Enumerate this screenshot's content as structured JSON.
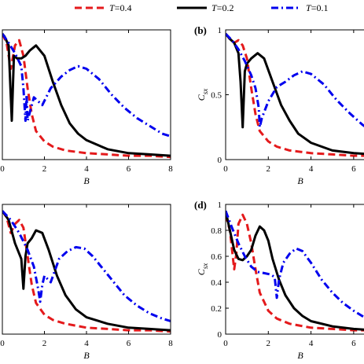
{
  "legend": [
    {
      "label_var": "T",
      "label_val": "=0.4",
      "color": "#e41a1c",
      "dash": "dashed"
    },
    {
      "label_var": "T",
      "label_val": "=0.2",
      "color": "#000000",
      "dash": "solid"
    },
    {
      "label_var": "T",
      "label_val": "=0.1",
      "color": "#0000ee",
      "dash": "dashdot"
    }
  ],
  "chart_data": [
    {
      "type": "line",
      "panel_label": "",
      "xlabel": "B",
      "ylabel": "",
      "xlim": [
        0,
        8
      ],
      "ylim": [
        0,
        1
      ],
      "xticks": [
        "0",
        "2",
        "4",
        "6",
        "8"
      ],
      "yticks": [],
      "series": [
        {
          "name": "T=0.4",
          "x": [
            0,
            0.2,
            0.4,
            0.6,
            0.8,
            1.0,
            1.2,
            1.4,
            1.6,
            2.0,
            2.4,
            3.0,
            4.0,
            5.0,
            6.0,
            7.0,
            8.0
          ],
          "y": [
            0.97,
            0.9,
            0.7,
            0.88,
            0.92,
            0.8,
            0.55,
            0.35,
            0.22,
            0.14,
            0.1,
            0.07,
            0.05,
            0.04,
            0.03,
            0.03,
            0.02
          ]
        },
        {
          "name": "T=0.2",
          "x": [
            0,
            0.1,
            0.3,
            0.45,
            0.55,
            0.7,
            0.9,
            1.1,
            1.3,
            1.6,
            2.0,
            2.4,
            2.8,
            3.2,
            3.6,
            4.0,
            5.0,
            6.0,
            7.0,
            8.0
          ],
          "y": [
            0.97,
            0.95,
            0.88,
            0.3,
            0.8,
            0.78,
            0.78,
            0.8,
            0.84,
            0.88,
            0.8,
            0.6,
            0.42,
            0.28,
            0.2,
            0.15,
            0.08,
            0.05,
            0.04,
            0.03
          ]
        },
        {
          "name": "T=0.1",
          "x": [
            0,
            0.3,
            0.6,
            0.9,
            1.0,
            1.1,
            1.15,
            1.2,
            1.5,
            1.9,
            2.3,
            2.8,
            3.2,
            3.6,
            4.0,
            4.6,
            5.2,
            5.8,
            6.4,
            7.0,
            7.6,
            8.0
          ],
          "y": [
            0.97,
            0.9,
            0.82,
            0.72,
            0.55,
            0.3,
            0.5,
            0.3,
            0.48,
            0.42,
            0.55,
            0.64,
            0.69,
            0.72,
            0.7,
            0.62,
            0.5,
            0.4,
            0.32,
            0.26,
            0.2,
            0.18
          ]
        }
      ]
    },
    {
      "type": "line",
      "panel_label": "(b)",
      "xlabel": "B",
      "ylabel_main": "C",
      "ylabel_sub": "sx",
      "xlim": [
        0,
        7
      ],
      "ylim": [
        0,
        1
      ],
      "xticks": [
        "0",
        "2",
        "4",
        "6"
      ],
      "yticks": [
        "0",
        "0.5",
        "1"
      ],
      "series": [
        {
          "name": "T=0.4",
          "x": [
            0,
            0.2,
            0.4,
            0.6,
            0.8,
            1.0,
            1.2,
            1.4,
            1.6,
            2.0,
            2.4,
            3.0,
            4.0,
            5.0,
            6.0,
            7.0
          ],
          "y": [
            0.97,
            0.93,
            0.9,
            0.92,
            0.88,
            0.78,
            0.55,
            0.35,
            0.22,
            0.14,
            0.1,
            0.07,
            0.05,
            0.04,
            0.03,
            0.03
          ]
        },
        {
          "name": "T=0.2",
          "x": [
            0,
            0.2,
            0.4,
            0.6,
            0.7,
            0.8,
            0.9,
            1.0,
            1.2,
            1.5,
            1.8,
            2.2,
            2.6,
            3.0,
            3.4,
            4.0,
            5.0,
            6.0,
            7.0
          ],
          "y": [
            0.97,
            0.93,
            0.9,
            0.82,
            0.6,
            0.25,
            0.68,
            0.74,
            0.78,
            0.82,
            0.78,
            0.6,
            0.42,
            0.3,
            0.2,
            0.13,
            0.07,
            0.05,
            0.04
          ]
        },
        {
          "name": "T=0.1",
          "x": [
            0,
            0.3,
            0.6,
            0.9,
            1.2,
            1.4,
            1.55,
            1.6,
            1.7,
            2.0,
            2.4,
            2.8,
            3.2,
            3.6,
            4.0,
            4.6,
            5.2,
            5.8,
            6.4,
            7.0
          ],
          "y": [
            0.97,
            0.92,
            0.85,
            0.76,
            0.65,
            0.55,
            0.4,
            0.25,
            0.32,
            0.45,
            0.56,
            0.6,
            0.65,
            0.68,
            0.66,
            0.58,
            0.46,
            0.36,
            0.27,
            0.2
          ]
        }
      ]
    },
    {
      "type": "line",
      "panel_label": "",
      "xlabel": "B",
      "ylabel": "",
      "xlim": [
        0,
        8
      ],
      "ylim": [
        0,
        1
      ],
      "xticks": [
        "0",
        "2",
        "4",
        "6",
        "8"
      ],
      "yticks": [],
      "series": [
        {
          "name": "T=0.4",
          "x": [
            0,
            0.2,
            0.4,
            0.6,
            0.8,
            1.0,
            1.2,
            1.4,
            1.6,
            2.0,
            2.4,
            3.0,
            4.0,
            5.0,
            6.0,
            7.0,
            8.0
          ],
          "y": [
            0.95,
            0.9,
            0.78,
            0.85,
            0.88,
            0.82,
            0.6,
            0.38,
            0.24,
            0.15,
            0.11,
            0.08,
            0.05,
            0.04,
            0.03,
            0.03,
            0.02
          ]
        },
        {
          "name": "T=0.2",
          "x": [
            0,
            0.3,
            0.6,
            0.9,
            1.0,
            1.1,
            1.2,
            1.4,
            1.6,
            1.9,
            2.2,
            2.6,
            3.0,
            3.5,
            4.0,
            5.0,
            6.0,
            7.0,
            8.0
          ],
          "y": [
            0.95,
            0.88,
            0.7,
            0.58,
            0.35,
            0.6,
            0.7,
            0.74,
            0.8,
            0.78,
            0.65,
            0.45,
            0.3,
            0.19,
            0.13,
            0.08,
            0.05,
            0.04,
            0.03
          ]
        },
        {
          "name": "T=0.1",
          "x": [
            0,
            0.4,
            0.8,
            1.2,
            1.5,
            1.7,
            1.8,
            1.9,
            2.0,
            2.3,
            2.7,
            3.1,
            3.5,
            3.9,
            4.3,
            4.8,
            5.3,
            5.8,
            6.4,
            7.0,
            7.6,
            8.0
          ],
          "y": [
            0.95,
            0.88,
            0.78,
            0.65,
            0.52,
            0.35,
            0.25,
            0.38,
            0.45,
            0.4,
            0.58,
            0.64,
            0.67,
            0.66,
            0.6,
            0.5,
            0.4,
            0.3,
            0.22,
            0.16,
            0.12,
            0.1
          ]
        }
      ]
    },
    {
      "type": "line",
      "panel_label": "(d)",
      "xlabel": "B",
      "ylabel_main": "C",
      "ylabel_sub": "sx",
      "xlim": [
        0,
        7
      ],
      "ylim": [
        0,
        1
      ],
      "xticks": [
        "0",
        "2",
        "4",
        "6"
      ],
      "yticks": [
        "0",
        "0.2",
        "0.4",
        "0.6",
        "0.8",
        "1"
      ],
      "series": [
        {
          "name": "T=0.4",
          "x": [
            0,
            0.2,
            0.4,
            0.5,
            0.6,
            0.8,
            1.0,
            1.2,
            1.4,
            1.6,
            2.0,
            2.4,
            3.0,
            4.0,
            5.0,
            6.0,
            7.0
          ],
          "y": [
            0.92,
            0.8,
            0.5,
            0.62,
            0.85,
            0.92,
            0.85,
            0.7,
            0.5,
            0.32,
            0.18,
            0.12,
            0.08,
            0.05,
            0.04,
            0.03,
            0.03
          ]
        },
        {
          "name": "T=0.2",
          "x": [
            0,
            0.2,
            0.4,
            0.6,
            0.8,
            1.0,
            1.2,
            1.4,
            1.6,
            1.8,
            2.0,
            2.2,
            2.5,
            2.8,
            3.2,
            3.6,
            4.0,
            5.0,
            6.0,
            7.0
          ],
          "y": [
            0.95,
            0.8,
            0.65,
            0.58,
            0.57,
            0.6,
            0.65,
            0.76,
            0.83,
            0.8,
            0.72,
            0.58,
            0.42,
            0.3,
            0.2,
            0.14,
            0.1,
            0.06,
            0.04,
            0.03
          ]
        },
        {
          "name": "T=0.1",
          "x": [
            0,
            0.3,
            0.6,
            0.9,
            1.2,
            1.5,
            1.8,
            2.1,
            2.3,
            2.4,
            2.5,
            2.7,
            3.0,
            3.3,
            3.6,
            4.0,
            4.5,
            5.0,
            5.5,
            6.0,
            6.5,
            7.0
          ],
          "y": [
            0.95,
            0.82,
            0.7,
            0.6,
            0.52,
            0.48,
            0.47,
            0.46,
            0.44,
            0.28,
            0.42,
            0.55,
            0.62,
            0.66,
            0.64,
            0.55,
            0.42,
            0.32,
            0.24,
            0.18,
            0.13,
            0.1
          ]
        }
      ]
    }
  ]
}
